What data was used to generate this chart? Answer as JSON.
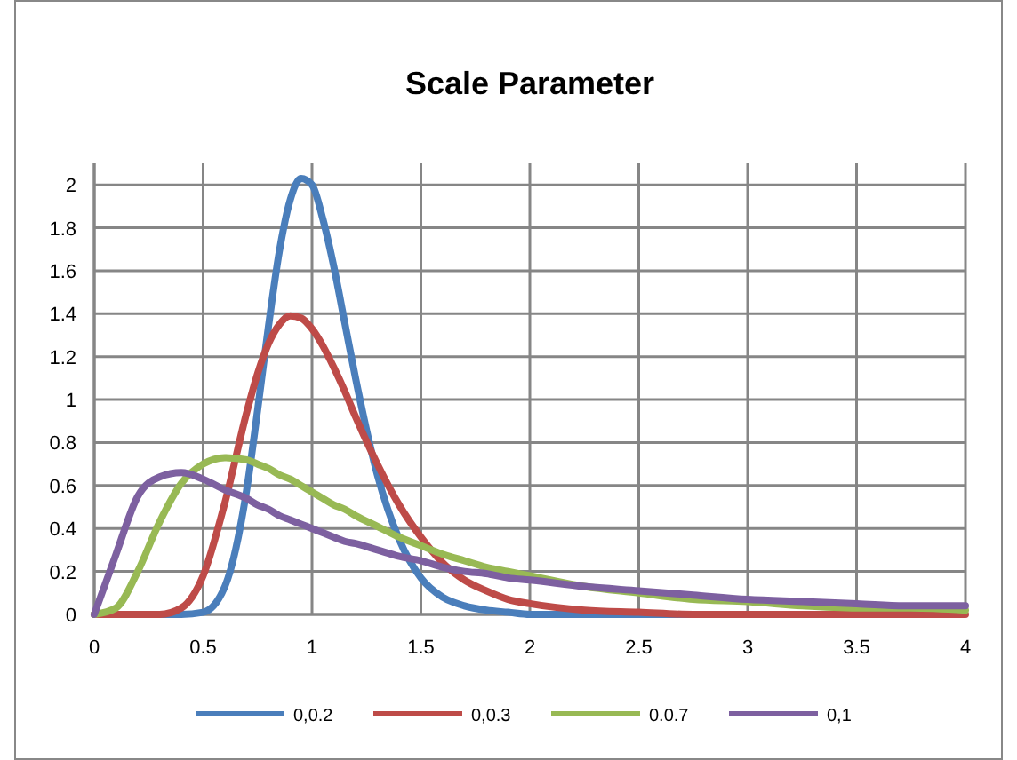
{
  "chart_data": {
    "type": "line",
    "title": "Scale Parameter",
    "x": [
      0,
      0.1,
      0.2,
      0.3,
      0.4,
      0.5,
      0.6,
      0.7,
      0.75,
      0.8,
      0.85,
      0.9,
      0.95,
      1.0,
      1.05,
      1.1,
      1.15,
      1.2,
      1.3,
      1.4,
      1.5,
      1.6,
      1.7,
      1.8,
      1.9,
      2.0,
      2.25,
      2.5,
      2.75,
      3,
      3.25,
      3.5,
      3.75,
      4
    ],
    "series": [
      {
        "name": "0,0.2",
        "color": "#4a7ebb",
        "values": [
          0,
          0,
          0,
          0,
          0,
          0.01,
          0.13,
          0.58,
          0.95,
          1.34,
          1.69,
          1.93,
          2.03,
          2,
          1.84,
          1.62,
          1.36,
          1.1,
          0.65,
          0.35,
          0.17,
          0.08,
          0.04,
          0.02,
          0.01,
          0,
          0,
          0,
          0,
          0,
          null,
          null,
          null,
          null
        ]
      },
      {
        "name": "0,0.3",
        "color": "#be4b48",
        "values": [
          0,
          0,
          0,
          0,
          0.03,
          0.18,
          0.52,
          0.94,
          1.12,
          1.26,
          1.35,
          1.39,
          1.38,
          1.33,
          1.25,
          1.15,
          1.04,
          0.92,
          0.7,
          0.51,
          0.36,
          0.24,
          0.16,
          0.11,
          0.07,
          0.05,
          0.02,
          0.01,
          0,
          0,
          0,
          0,
          0,
          0
        ]
      },
      {
        "name": "0.0.7",
        "color": "#98b954",
        "values": [
          0,
          0.03,
          0.2,
          0.43,
          0.61,
          0.7,
          0.73,
          0.72,
          0.7,
          0.68,
          0.65,
          0.63,
          0.6,
          0.57,
          0.54,
          0.51,
          0.49,
          0.46,
          0.41,
          0.36,
          0.32,
          0.28,
          0.25,
          0.22,
          0.2,
          0.18,
          0.13,
          0.1,
          0.07,
          0.06,
          0.04,
          0.03,
          0.03,
          0.02
        ]
      },
      {
        "name": "0,1",
        "color": "#7d60a0",
        "values": [
          0,
          0.28,
          0.55,
          0.64,
          0.66,
          0.63,
          0.58,
          0.54,
          0.51,
          0.49,
          0.46,
          0.44,
          0.42,
          0.4,
          0.38,
          0.36,
          0.34,
          0.33,
          0.3,
          0.27,
          0.25,
          0.22,
          0.2,
          0.19,
          0.17,
          0.16,
          0.13,
          0.11,
          0.09,
          0.07,
          0.06,
          0.05,
          0.04,
          0.04
        ]
      }
    ],
    "xlim": [
      0,
      4
    ],
    "xticks": [
      0,
      0.5,
      1,
      1.5,
      2,
      2.5,
      3,
      3.5,
      4
    ],
    "ylim": [
      0,
      2.1
    ],
    "yticks": [
      0,
      0.2,
      0.4,
      0.6,
      0.8,
      1,
      1.2,
      1.4,
      1.6,
      1.8,
      2
    ],
    "grid": true,
    "legend": "bottom",
    "marker": "none",
    "line_style": "solid"
  }
}
